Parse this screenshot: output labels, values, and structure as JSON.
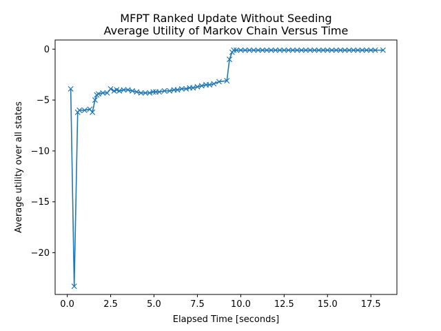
{
  "chart_data": {
    "type": "line",
    "title_line1": "MFPT Ranked Update Without Seeding",
    "title_line2": "Average Utility of Markov Chain Versus Time",
    "xlabel": "Elapsed Time [seconds]",
    "ylabel": "Average utility over all states",
    "xlim": [
      -0.7,
      19.0
    ],
    "ylim": [
      -24.1,
      0.9
    ],
    "x_ticks": [
      0.0,
      2.5,
      5.0,
      7.5,
      10.0,
      12.5,
      15.0,
      17.5
    ],
    "x_tick_labels": [
      "0.0",
      "2.5",
      "5.0",
      "7.5",
      "10.0",
      "12.5",
      "15.0",
      "17.5"
    ],
    "y_ticks": [
      0,
      -5,
      -10,
      -15,
      -20
    ],
    "y_tick_labels": [
      "0",
      "−5",
      "−10",
      "−15",
      "−20"
    ],
    "grid": false,
    "marker": "x",
    "color": "#1f77b4",
    "series": [
      {
        "x": [
          0.2,
          0.4,
          0.6,
          0.7,
          1.0,
          1.3,
          1.45,
          1.6,
          1.7,
          1.8,
          2.05,
          2.3,
          2.5,
          2.7,
          2.85,
          3.0,
          3.25,
          3.5,
          3.75,
          4.0,
          4.25,
          4.5,
          4.75,
          4.95,
          5.1,
          5.3,
          5.6,
          5.9,
          6.15,
          6.35,
          6.6,
          6.85,
          7.05,
          7.25,
          7.5,
          7.75,
          8.0,
          8.2,
          8.45,
          8.75,
          9.2,
          9.35,
          9.5,
          9.6,
          9.75,
          10.0,
          10.25,
          10.5,
          10.75,
          11.0,
          11.25,
          11.5,
          11.75,
          12.0,
          12.25,
          12.5,
          12.75,
          13.0,
          13.25,
          13.5,
          13.75,
          14.0,
          14.25,
          14.5,
          14.75,
          15.0,
          15.25,
          15.5,
          15.75,
          16.0,
          16.25,
          16.5,
          16.75,
          17.0,
          17.25,
          17.5,
          17.75,
          18.2
        ],
        "y": [
          -3.9,
          -23.3,
          -6.2,
          -6.0,
          -6.0,
          -5.9,
          -6.2,
          -5.0,
          -4.5,
          -4.4,
          -4.3,
          -4.3,
          -3.9,
          -4.1,
          -4.0,
          -4.1,
          -4.0,
          -4.0,
          -4.1,
          -4.2,
          -4.3,
          -4.3,
          -4.3,
          -4.2,
          -4.2,
          -4.2,
          -4.1,
          -4.1,
          -4.0,
          -4.0,
          -3.9,
          -3.9,
          -3.8,
          -3.8,
          -3.7,
          -3.6,
          -3.5,
          -3.5,
          -3.4,
          -3.2,
          -3.1,
          -1.0,
          -0.3,
          -0.1,
          -0.1,
          -0.1,
          -0.1,
          -0.1,
          -0.1,
          -0.1,
          -0.1,
          -0.1,
          -0.1,
          -0.1,
          -0.1,
          -0.1,
          -0.1,
          -0.1,
          -0.1,
          -0.1,
          -0.1,
          -0.1,
          -0.1,
          -0.1,
          -0.1,
          -0.1,
          -0.1,
          -0.1,
          -0.1,
          -0.1,
          -0.1,
          -0.1,
          -0.1,
          -0.1,
          -0.1,
          -0.1,
          -0.1,
          -0.1
        ]
      }
    ]
  }
}
